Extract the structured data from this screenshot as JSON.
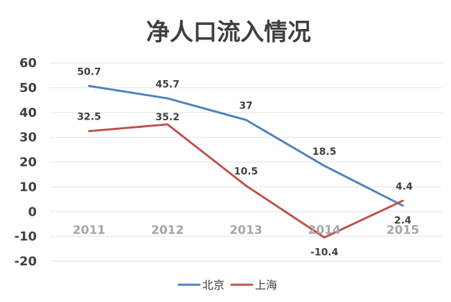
{
  "chart_data": {
    "type": "line",
    "title": "净人口流入情况",
    "xlabel": "",
    "ylabel": "",
    "categories": [
      "2011",
      "2012",
      "2013",
      "2014",
      "2015"
    ],
    "ylim": [
      -20,
      60
    ],
    "yticks": [
      -20,
      -10,
      0,
      10,
      20,
      30,
      40,
      50,
      60
    ],
    "grid": true,
    "legend_position": "bottom",
    "series": [
      {
        "name": "北京",
        "color": "#4f81bd",
        "values": [
          50.7,
          45.7,
          37,
          18.5,
          2.4
        ],
        "labels": [
          "50.7",
          "45.7",
          "37",
          "18.5",
          "2.4"
        ]
      },
      {
        "name": "上海",
        "color": "#c0504d",
        "values": [
          32.5,
          35.2,
          10.5,
          -10.4,
          4.4
        ],
        "labels": [
          "32.5",
          "35.2",
          "10.5",
          "-10.4",
          "4.4"
        ]
      }
    ]
  }
}
